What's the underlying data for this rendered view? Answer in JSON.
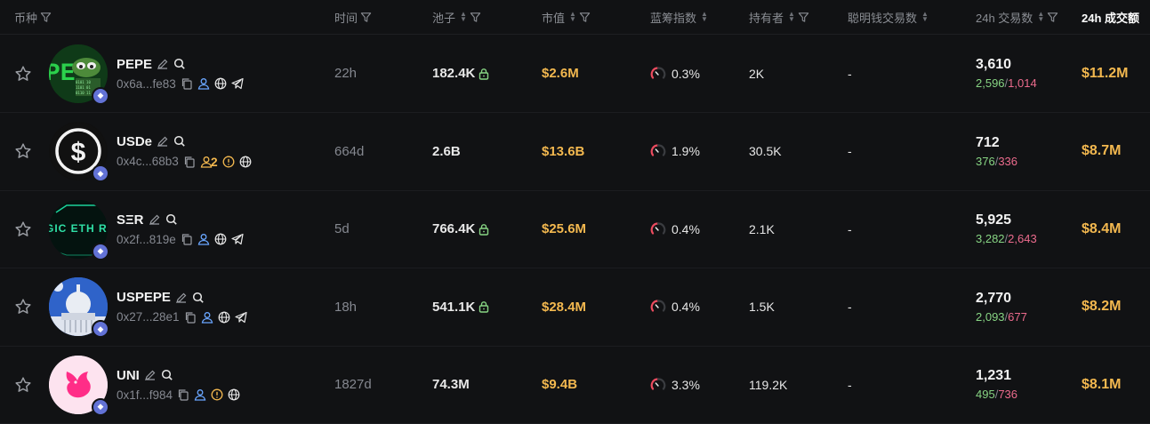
{
  "header": {
    "coin": "币种",
    "time": "时间",
    "pool": "池子",
    "mcap": "市值",
    "blue_chip": "蓝筹指数",
    "holders": "持有者",
    "smart_tx": "聪明钱交易数",
    "tx_24h": "24h 交易数",
    "vol_24h": "24h 成交额"
  },
  "colors": {
    "background": "#111214",
    "gold": "#f3b84f",
    "buy": "#87d483",
    "sell": "#ec6b8d",
    "muted": "#858890",
    "chain": "#6272d6"
  },
  "rows": [
    {
      "name": "PEPE",
      "address": "0x6a...fe83",
      "time": "22h",
      "pool": "182.4K",
      "pool_locked": true,
      "mcap": "$2.6M",
      "blue_chip": "0.3%",
      "holders": "2K",
      "smart_tx": "-",
      "tx_total": "3,610",
      "tx_buy": "2,596",
      "tx_sell": "1,014",
      "volume": "$11.2M",
      "avatar_icon": "pepe-frog-icon",
      "social_icons": [
        "copy-icon",
        "user-icon",
        "globe-icon",
        "telegram-icon"
      ]
    },
    {
      "name": "USDe",
      "address": "0x4c...68b3",
      "time": "664d",
      "pool": "2.6B",
      "pool_locked": false,
      "mcap": "$13.6B",
      "blue_chip": "1.9%",
      "holders": "30.5K",
      "smart_tx": "-",
      "tx_total": "712",
      "tx_buy": "376",
      "tx_sell": "336",
      "volume": "$8.7M",
      "dev_holders": "2",
      "avatar_icon": "dollar-circle-icon",
      "social_icons": [
        "copy-icon",
        "user-icon",
        "warning-icon",
        "globe-icon"
      ]
    },
    {
      "name": "SΞR",
      "address": "0x2f...819e",
      "time": "5d",
      "pool": "766.4K",
      "pool_locked": true,
      "mcap": "$25.6M",
      "blue_chip": "0.4%",
      "holders": "2.1K",
      "smart_tx": "-",
      "tx_total": "5,925",
      "tx_buy": "3,282",
      "tx_sell": "2,643",
      "volume": "$8.4M",
      "avatar_text": "GIC ETH R",
      "avatar_icon": "magic-eth-icon",
      "social_icons": [
        "copy-icon",
        "user-icon",
        "globe-icon",
        "telegram-icon"
      ]
    },
    {
      "name": "USPEPE",
      "address": "0x27...28e1",
      "time": "18h",
      "pool": "541.1K",
      "pool_locked": true,
      "mcap": "$28.4M",
      "blue_chip": "0.4%",
      "holders": "1.5K",
      "smart_tx": "-",
      "tx_total": "2,770",
      "tx_buy": "2,093",
      "tx_sell": "677",
      "volume": "$8.2M",
      "avatar_icon": "capitol-building-icon",
      "social_icons": [
        "copy-icon",
        "user-icon",
        "globe-icon",
        "telegram-icon"
      ]
    },
    {
      "name": "UNI",
      "address": "0x1f...f984",
      "time": "1827d",
      "pool": "74.3M",
      "pool_locked": false,
      "mcap": "$9.4B",
      "blue_chip": "3.3%",
      "holders": "119.2K",
      "smart_tx": "-",
      "tx_total": "1,231",
      "tx_buy": "495",
      "tx_sell": "736",
      "volume": "$8.1M",
      "avatar_icon": "uniswap-unicorn-icon",
      "social_icons": [
        "copy-icon",
        "user-icon",
        "warning-icon",
        "globe-icon"
      ]
    }
  ]
}
